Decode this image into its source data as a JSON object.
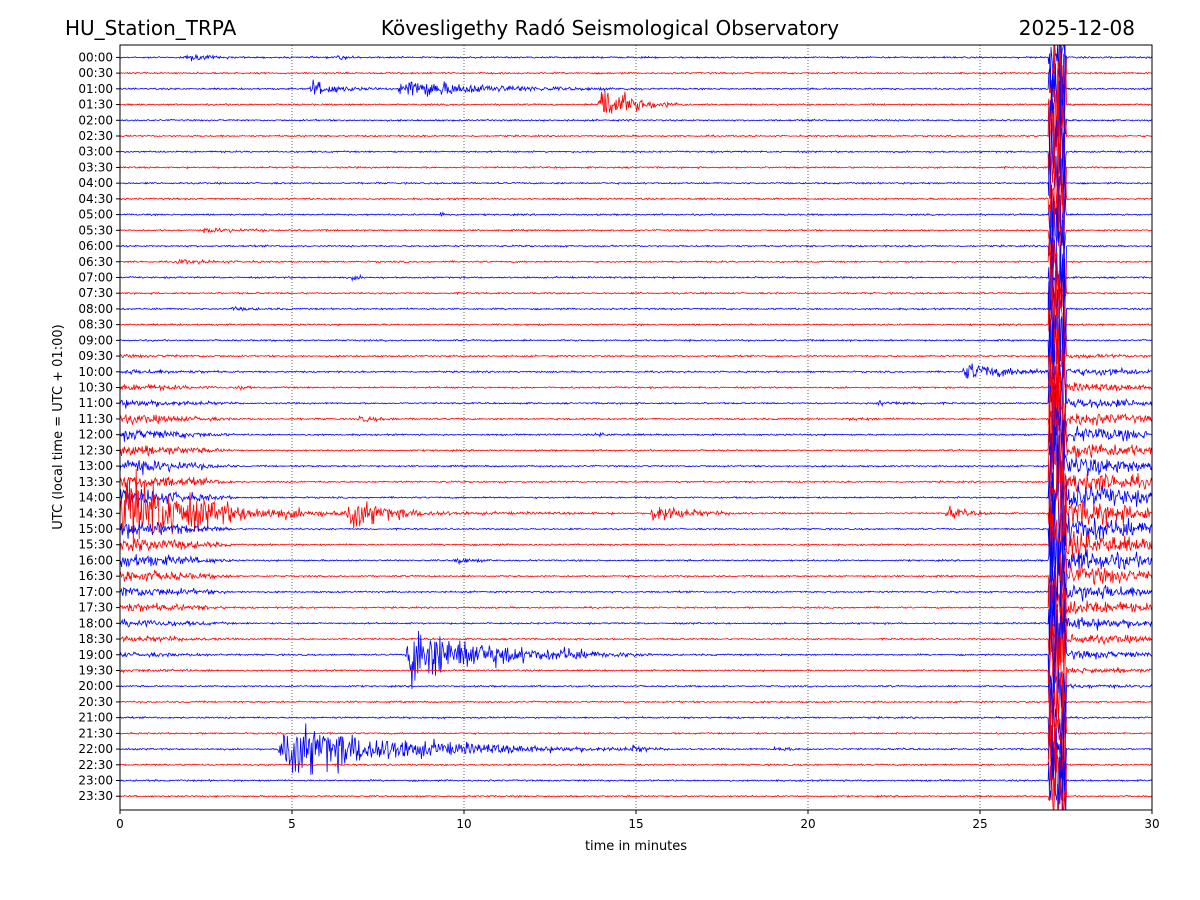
{
  "chart_data": {
    "type": "line",
    "station": "HU_Station_TRPA",
    "title": "Kövesligethy Radó Seismological Observatory",
    "date": "2025-12-08",
    "xlabel": "time in minutes",
    "ylabel": "UTC (local time = UTC + 01:00)",
    "xlim": [
      0,
      30
    ],
    "x_ticks": [
      0,
      5,
      10,
      15,
      20,
      25,
      30
    ],
    "grid": "vertical dotted",
    "trace_colors": [
      "#0000ff",
      "#ff0000"
    ],
    "row_labels": [
      "00:00",
      "00:30",
      "01:00",
      "01:30",
      "02:00",
      "02:30",
      "03:00",
      "03:30",
      "04:00",
      "04:30",
      "05:00",
      "05:30",
      "06:00",
      "06:30",
      "07:00",
      "07:30",
      "08:00",
      "08:30",
      "09:00",
      "09:30",
      "10:00",
      "10:30",
      "11:00",
      "11:30",
      "12:00",
      "12:30",
      "13:00",
      "13:30",
      "14:00",
      "14:30",
      "15:00",
      "15:30",
      "16:00",
      "16:30",
      "17:00",
      "17:30",
      "18:00",
      "18:30",
      "19:00",
      "19:30",
      "20:00",
      "20:30",
      "21:00",
      "21:30",
      "22:00",
      "22:30",
      "23:00",
      "23:30"
    ],
    "events": [
      {
        "row": "00:00",
        "start_min": 1.9,
        "duration_min": 1.5,
        "amplitude": 0.5
      },
      {
        "row": "00:00",
        "start_min": 6.3,
        "duration_min": 0.8,
        "amplitude": 0.3
      },
      {
        "row": "01:00",
        "start_min": 5.5,
        "duration_min": 2.0,
        "amplitude": 1.2
      },
      {
        "row": "01:00",
        "start_min": 8.1,
        "duration_min": 6.0,
        "amplitude": 1.5
      },
      {
        "row": "01:30",
        "start_min": 13.9,
        "duration_min": 2.2,
        "amplitude": 3.5
      },
      {
        "row": "05:00",
        "start_min": 9.3,
        "duration_min": 0.4,
        "amplitude": 0.4
      },
      {
        "row": "05:30",
        "start_min": 2.4,
        "duration_min": 3.0,
        "amplitude": 0.3
      },
      {
        "row": "06:30",
        "start_min": 1.6,
        "duration_min": 2.5,
        "amplitude": 0.3
      },
      {
        "row": "07:00",
        "start_min": 6.7,
        "duration_min": 0.8,
        "amplitude": 0.3
      },
      {
        "row": "08:00",
        "start_min": 3.2,
        "duration_min": 1.5,
        "amplitude": 0.25
      },
      {
        "row": "10:00",
        "start_min": 24.5,
        "duration_min": 3.5,
        "amplitude": 1.3
      },
      {
        "row": "10:00",
        "start_min": 28.5,
        "duration_min": 1.5,
        "amplitude": 0.4
      },
      {
        "row": "10:30",
        "start_min": 3.4,
        "duration_min": 0.4,
        "amplitude": 1.0
      },
      {
        "row": "11:00",
        "start_min": 22.0,
        "duration_min": 2.0,
        "amplitude": 0.3
      },
      {
        "row": "11:30",
        "start_min": 6.9,
        "duration_min": 1.5,
        "amplitude": 0.4
      },
      {
        "row": "11:30",
        "start_min": 21.2,
        "duration_min": 1.5,
        "amplitude": 0.2
      },
      {
        "row": "12:00",
        "start_min": 13.8,
        "duration_min": 1.5,
        "amplitude": 0.2
      },
      {
        "row": "14:30",
        "start_min": 0.0,
        "duration_min": 4.8,
        "amplitude": 3.5
      },
      {
        "row": "14:30",
        "start_min": 0.0,
        "duration_min": 12.0,
        "amplitude": 1.2
      },
      {
        "row": "14:30",
        "start_min": 6.6,
        "duration_min": 2.5,
        "amplitude": 2.4
      },
      {
        "row": "14:30",
        "start_min": 15.4,
        "duration_min": 2.5,
        "amplitude": 1.6
      },
      {
        "row": "14:30",
        "start_min": 24.0,
        "duration_min": 1.5,
        "amplitude": 1.0
      },
      {
        "row": "16:00",
        "start_min": 9.7,
        "duration_min": 1.3,
        "amplitude": 0.5
      },
      {
        "row": "19:00",
        "start_min": 8.3,
        "duration_min": 6.0,
        "amplitude": 4.5
      },
      {
        "row": "19:00",
        "start_min": 12.8,
        "duration_min": 1.0,
        "amplitude": 0.8
      },
      {
        "row": "22:00",
        "start_min": 4.6,
        "duration_min": 9.0,
        "amplitude": 4.0
      },
      {
        "row": "22:00",
        "start_min": 14.8,
        "duration_min": 1.5,
        "amplitude": 0.3
      },
      {
        "row": "22:00",
        "start_min": 19.0,
        "duration_min": 1.2,
        "amplitude": 0.3
      }
    ],
    "saturated_segment": {
      "start_min": 27.0,
      "end_min": 27.5,
      "note": "clipped high-amplitude signal across all rows"
    },
    "broad_disturbance": {
      "start_min": 27.5,
      "end_min": 30.0,
      "from_row": "09:30",
      "to_row": "20:00"
    },
    "early_disturbance": {
      "start_min": 0.0,
      "end_min": 3.5,
      "from_row": "09:30",
      "to_row": "19:30"
    }
  }
}
